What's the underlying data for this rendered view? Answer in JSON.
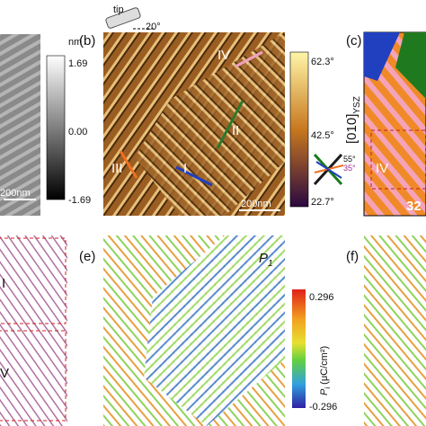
{
  "panel_a": {
    "colorbar_unit": "nm",
    "colorbar_ticks": [
      "1.69",
      "0.00",
      "-1.69"
    ],
    "scale_bar": "200nm"
  },
  "panel_b": {
    "label": "(b)",
    "tip": "tip",
    "tip_angle": "20°",
    "regions": [
      "IV",
      "II",
      "III",
      "I"
    ],
    "scale_bar": "200nm",
    "colorbar_ticks": [
      "62.3°",
      "42.5°",
      "22.7°"
    ],
    "inset_angles": [
      "55°",
      "35°"
    ]
  },
  "panel_c": {
    "label": "(c)",
    "axis_label": "[010]",
    "axis_subscript": "YSZ",
    "region": "IV",
    "angle": "32"
  },
  "panel_d": {
    "regions": [
      "I",
      "V"
    ]
  },
  "panel_e": {
    "label": "(e)",
    "component": "P",
    "component_subscript": "1",
    "colorbar_ticks": [
      "0.296",
      "-0.296"
    ],
    "colorbar_symbol": "P",
    "colorbar_symbol_subscript": "i",
    "colorbar_unit": " (μC/cm²)"
  },
  "panel_f": {
    "label": "(f)"
  }
}
